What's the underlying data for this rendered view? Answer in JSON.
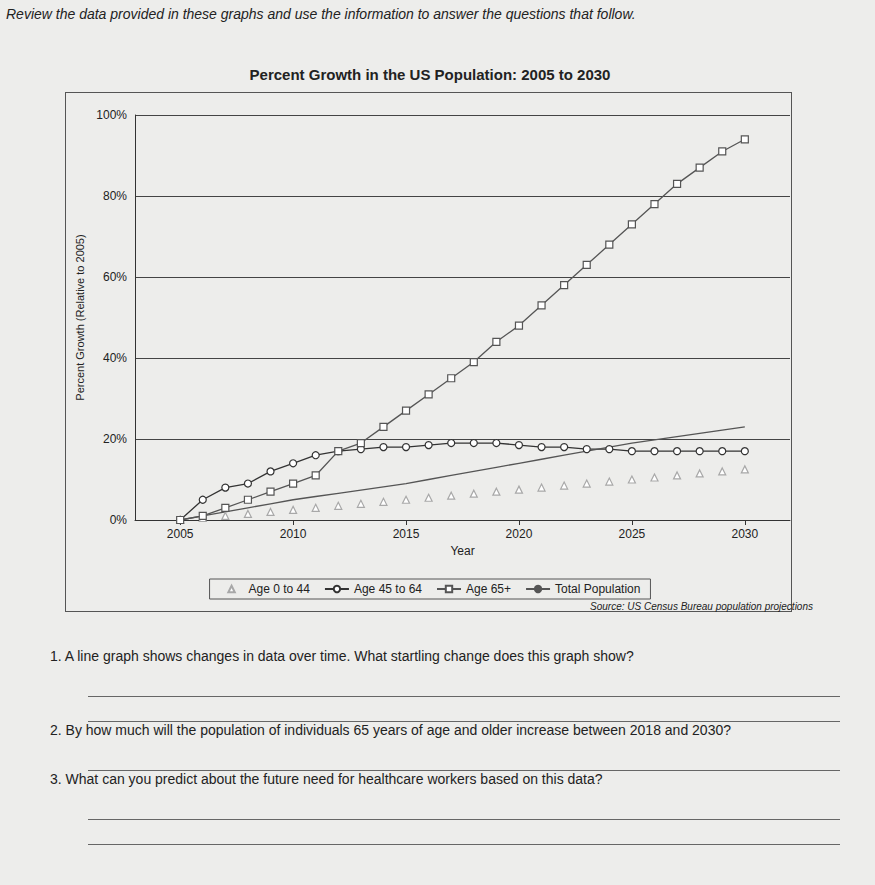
{
  "instructions": "Review the data provided in these graphs and use the information to answer the questions that follow.",
  "chart_data": {
    "type": "line",
    "title": "Percent Growth in the US Population: 2005 to 2030",
    "x_label": "Year",
    "y_label": "Percent Growth (Relative to 2005)",
    "source": "Source: US Census Bureau population projections",
    "x": [
      2005,
      2006,
      2007,
      2008,
      2009,
      2010,
      2011,
      2012,
      2013,
      2014,
      2015,
      2016,
      2017,
      2018,
      2019,
      2020,
      2021,
      2022,
      2023,
      2024,
      2025,
      2026,
      2027,
      2028,
      2029,
      2030
    ],
    "series": [
      {
        "name": "Age 0 to 44",
        "color": "#a8a8a8",
        "marker": "triangle",
        "line_style": "none",
        "values": [
          0,
          0.5,
          1,
          1.5,
          2,
          2.5,
          3,
          3.5,
          4,
          4.5,
          5,
          5.5,
          6,
          6.5,
          7,
          7.5,
          8,
          8.5,
          9,
          9.5,
          10,
          10.5,
          11,
          11.5,
          12,
          12.5
        ]
      },
      {
        "name": "Age 45 to 64",
        "color": "#333333",
        "marker": "circle",
        "line_style": "solid",
        "values": [
          0,
          5,
          8,
          9,
          12,
          14,
          16,
          17,
          17.5,
          18,
          18,
          18.5,
          19,
          19,
          19,
          18.5,
          18,
          18,
          17.5,
          17.5,
          17,
          17,
          17,
          17,
          17,
          17
        ]
      },
      {
        "name": "Age 65+",
        "color": "#555555",
        "marker": "square",
        "line_style": "solid",
        "values": [
          0,
          1,
          3,
          5,
          7,
          9,
          11,
          17,
          19,
          23,
          27,
          31,
          35,
          39,
          44,
          48,
          53,
          58,
          63,
          68,
          73,
          78,
          83,
          87,
          91,
          94
        ]
      },
      {
        "name": "Total Population",
        "color": "#555555",
        "marker": "none",
        "line_style": "solid",
        "values": [
          0,
          1,
          2,
          3,
          4,
          5,
          5.8,
          6.6,
          7.4,
          8.2,
          9,
          10,
          11,
          12,
          13,
          14,
          15,
          16,
          17,
          18,
          19,
          19.8,
          20.6,
          21.4,
          22.2,
          23
        ]
      }
    ],
    "xlim": [
      2003,
      2032
    ],
    "xticks": [
      2005,
      2010,
      2015,
      2020,
      2025,
      2030
    ],
    "ylim": [
      0,
      100
    ],
    "yticks": [
      {
        "value": 0,
        "label": "0%"
      },
      {
        "value": 20,
        "label": "20%"
      },
      {
        "value": 40,
        "label": "40%"
      },
      {
        "value": 60,
        "label": "60%"
      },
      {
        "value": 80,
        "label": "80%"
      },
      {
        "value": 100,
        "label": "100%"
      }
    ],
    "grid": true,
    "legend": "bottom"
  },
  "questions": [
    {
      "number": "1.",
      "text": "A line graph shows changes in data over time. What startling change does this graph show?",
      "lines": 2
    },
    {
      "number": "2.",
      "text": "By how much will the population of individuals 65 years of age and older increase between 2018 and 2030?",
      "lines": 1
    },
    {
      "number": "3.",
      "text": "What can you predict about the future need for healthcare workers based on this data?",
      "lines": 2
    }
  ]
}
